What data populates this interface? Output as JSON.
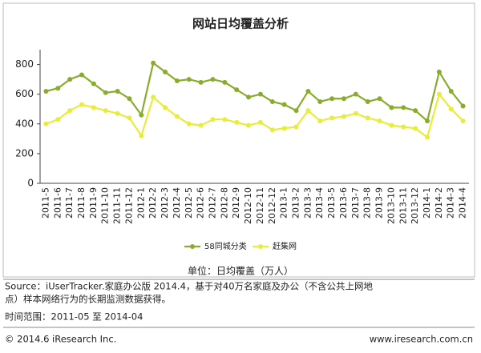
{
  "chart_data": {
    "type": "line",
    "title": "网站日均覆盖分析",
    "categories": [
      "2011-5",
      "2011-6",
      "2011-7",
      "2011-8",
      "2011-9",
      "2011-10",
      "2011-11",
      "2011-12",
      "2012-1",
      "2012-2",
      "2012-3",
      "2012-4",
      "2012-5",
      "2012-6",
      "2012-7",
      "2012-8",
      "2012-9",
      "2012-10",
      "2012-11",
      "2012-12",
      "2013-1",
      "2013-2",
      "2013-3",
      "2013-4",
      "2013-5",
      "2013-6",
      "2013-7",
      "2013-8",
      "2013-9",
      "2013-10",
      "2013-11",
      "2013-12",
      "2014-1",
      "2014-2",
      "2014-3",
      "2014-4"
    ],
    "series": [
      {
        "name": "58同城分类",
        "color": "#8aac2e",
        "values": [
          620,
          640,
          700,
          730,
          670,
          610,
          620,
          570,
          460,
          810,
          750,
          690,
          700,
          680,
          700,
          680,
          630,
          580,
          600,
          550,
          530,
          490,
          620,
          550,
          570,
          570,
          600,
          550,
          570,
          510,
          510,
          490,
          420,
          750,
          620,
          520
        ]
      },
      {
        "name": "赶集网",
        "color": "#e8ec3c",
        "values": [
          400,
          430,
          490,
          530,
          510,
          490,
          470,
          440,
          320,
          580,
          510,
          450,
          400,
          390,
          430,
          430,
          410,
          390,
          410,
          360,
          370,
          380,
          490,
          420,
          440,
          450,
          470,
          440,
          420,
          390,
          380,
          370,
          310,
          600,
          500,
          420
        ]
      }
    ],
    "ylim": [
      0,
      900
    ],
    "yticks": [
      0,
      200,
      400,
      600,
      800
    ],
    "unit": "单位：日均覆盖（万人）",
    "source": [
      "Source：iUserTracker.家庭办公版 2014.4，基于对40万名家庭及办公（不含公共上网地",
      "点）样本网络行为的长期监测数据获得。"
    ],
    "time_range": "时间范围：2011-05 至 2014-04",
    "copyright": "© 2014.6 iResearch Inc.",
    "website": "www.iresearch.com.cn"
  }
}
